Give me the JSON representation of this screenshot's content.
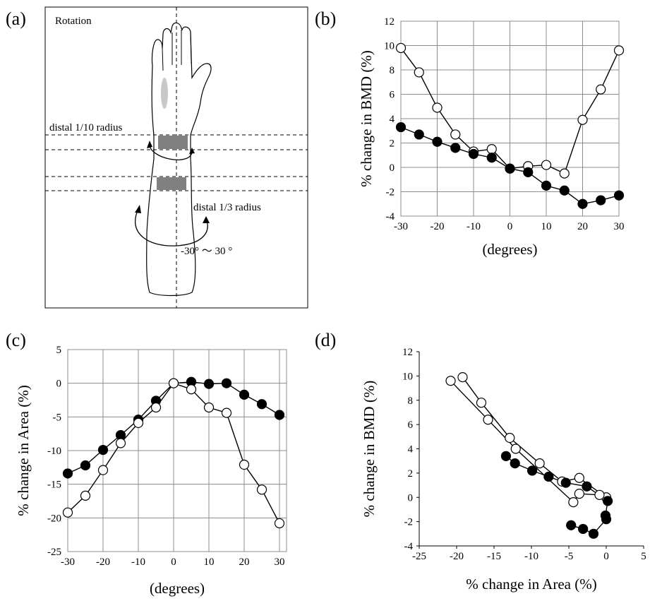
{
  "panels": {
    "a": "(a)",
    "b": "(b)",
    "c": "(c)",
    "d": "(d)"
  },
  "diagram": {
    "title": "Rotation",
    "label_upper": "distal 1/10 radius",
    "label_lower": "distal 1/3 radius",
    "range": "-30°  ～  30 °"
  },
  "colors": {
    "filled_marker": "#000000",
    "open_marker": "#ffffff",
    "band": "#808080",
    "grid": "#8c8c8c"
  },
  "chart_data": [
    {
      "panel": "b",
      "type": "scatter",
      "xlabel": "(degrees)",
      "ylabel": "% change in BMD (%)",
      "xlim": [
        -30,
        30
      ],
      "ylim": [
        -4,
        12
      ],
      "xticks": [
        -30,
        -20,
        -10,
        0,
        10,
        20,
        30
      ],
      "yticks": [
        -4,
        -2,
        0,
        2,
        4,
        6,
        8,
        10,
        12
      ],
      "grid": true,
      "series": [
        {
          "marker": "open",
          "points": [
            [
              -30,
              9.8
            ],
            [
              -25,
              7.8
            ],
            [
              -20,
              4.9
            ],
            [
              -15,
              2.7
            ],
            [
              -10,
              1.3
            ],
            [
              -5,
              1.5
            ],
            [
              0,
              -0.1
            ],
            [
              5,
              0.1
            ],
            [
              10,
              0.2
            ],
            [
              15,
              -0.5
            ],
            [
              20,
              3.9
            ],
            [
              25,
              6.4
            ],
            [
              30,
              9.6
            ]
          ]
        },
        {
          "marker": "filled",
          "points": [
            [
              -30,
              3.3
            ],
            [
              -25,
              2.7
            ],
            [
              -20,
              2.1
            ],
            [
              -15,
              1.6
            ],
            [
              -10,
              1.1
            ],
            [
              -5,
              0.8
            ],
            [
              0,
              -0.1
            ],
            [
              5,
              -0.4
            ],
            [
              10,
              -1.5
            ],
            [
              15,
              -1.9
            ],
            [
              20,
              -3.0
            ],
            [
              25,
              -2.7
            ],
            [
              30,
              -2.3
            ]
          ]
        }
      ]
    },
    {
      "panel": "c",
      "type": "scatter",
      "xlabel": "(degrees)",
      "ylabel": "% change in Area (%)",
      "xlim": [
        -30,
        32
      ],
      "ylim": [
        -25,
        5
      ],
      "xticks": [
        -30,
        -20,
        -10,
        0,
        10,
        20,
        30
      ],
      "yticks": [
        -25,
        -20,
        -15,
        -10,
        -5,
        0,
        5
      ],
      "grid": true,
      "series": [
        {
          "marker": "filled",
          "points": [
            [
              -30,
              -13.4
            ],
            [
              -25,
              -12.2
            ],
            [
              -20,
              -9.9
            ],
            [
              -15,
              -7.7
            ],
            [
              -10,
              -5.4
            ],
            [
              -5,
              -2.6
            ],
            [
              0,
              0.0
            ],
            [
              5,
              0.2
            ],
            [
              10,
              -0.1
            ],
            [
              15,
              0.0
            ],
            [
              20,
              -1.7
            ],
            [
              25,
              -3.1
            ],
            [
              30,
              -4.7
            ]
          ]
        },
        {
          "marker": "open",
          "points": [
            [
              -30,
              -19.2
            ],
            [
              -25,
              -16.7
            ],
            [
              -20,
              -12.9
            ],
            [
              -15,
              -8.9
            ],
            [
              -10,
              -5.9
            ],
            [
              -5,
              -3.6
            ],
            [
              0,
              0.0
            ],
            [
              5,
              -0.9
            ],
            [
              10,
              -3.6
            ],
            [
              15,
              -4.4
            ],
            [
              20,
              -12.1
            ],
            [
              25,
              -15.8
            ],
            [
              30,
              -20.8
            ]
          ]
        }
      ]
    },
    {
      "panel": "d",
      "type": "scatter",
      "xlabel": "% change in Area (%)",
      "ylabel": "% change in BMD (%)",
      "xlim": [
        -25,
        5
      ],
      "ylim": [
        -4,
        12
      ],
      "xticks": [
        -25,
        -20,
        -15,
        -10,
        -5,
        0,
        5
      ],
      "yticks": [
        -4,
        -2,
        0,
        2,
        4,
        6,
        8,
        10,
        12
      ],
      "grid": false,
      "series": [
        {
          "marker": "open",
          "points": [
            [
              -19.2,
              9.9
            ],
            [
              -16.7,
              7.8
            ],
            [
              -12.9,
              4.9
            ],
            [
              -8.9,
              2.8
            ],
            [
              -5.9,
              1.3
            ],
            [
              -3.6,
              1.6
            ],
            [
              0.0,
              0.0
            ],
            [
              -0.9,
              0.2
            ],
            [
              -3.6,
              0.3
            ],
            [
              -4.4,
              -0.4
            ],
            [
              -12.1,
              4.0
            ],
            [
              -15.8,
              6.4
            ],
            [
              -20.8,
              9.6
            ]
          ]
        },
        {
          "marker": "filled",
          "points": [
            [
              -13.4,
              3.4
            ],
            [
              -12.2,
              2.8
            ],
            [
              -9.9,
              2.2
            ],
            [
              -7.7,
              1.7
            ],
            [
              -5.4,
              1.2
            ],
            [
              -2.6,
              0.9
            ],
            [
              0.2,
              -0.3
            ],
            [
              -0.1,
              -1.5
            ],
            [
              0.0,
              -1.8
            ],
            [
              -1.7,
              -3.0
            ],
            [
              -3.1,
              -2.6
            ],
            [
              -4.7,
              -2.3
            ]
          ]
        }
      ]
    }
  ]
}
